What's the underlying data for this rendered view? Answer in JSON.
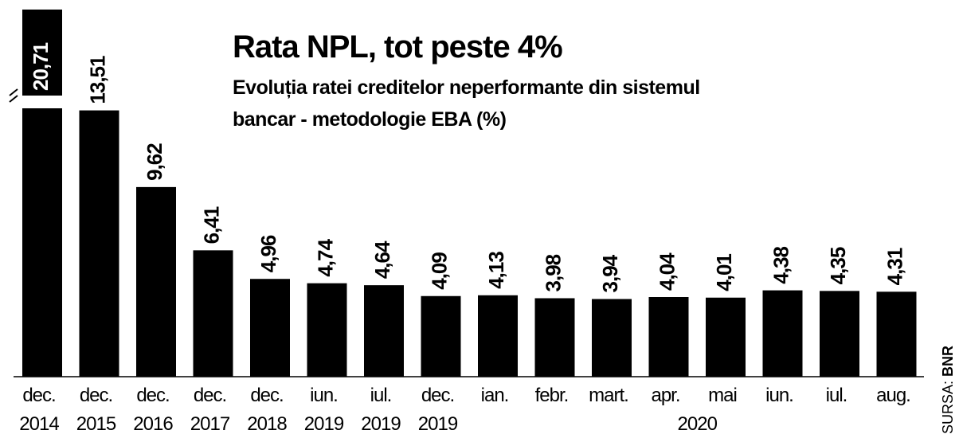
{
  "chart_data": {
    "type": "bar",
    "title": "Rata NPL, tot peste 4%",
    "subtitle": [
      "Evoluția ratei creditelor neperformante din sistemul",
      "bancar - metodologie EBA (%)"
    ],
    "categories": [
      "dec.",
      "dec.",
      "dec.",
      "dec.",
      "dec.",
      "iun.",
      "iul.",
      "dec.",
      "ian.",
      "febr.",
      "mart.",
      "apr.",
      "mai",
      "iun.",
      "iul.",
      "aug."
    ],
    "years": [
      "2014",
      "2015",
      "2016",
      "2017",
      "2018",
      "2019",
      "2019",
      "2019",
      null,
      null,
      null,
      null,
      null,
      null,
      null,
      null
    ],
    "group_label": "2020",
    "values": [
      20.71,
      13.51,
      9.62,
      6.41,
      4.96,
      4.74,
      4.64,
      4.09,
      4.13,
      3.98,
      3.94,
      4.04,
      4.01,
      4.38,
      4.35,
      4.31
    ],
    "value_labels": [
      "20,71",
      "13,51",
      "9,62",
      "6,41",
      "4,96",
      "4,74",
      "4,64",
      "4,09",
      "4,13",
      "3,98",
      "3,94",
      "4,04",
      "4,01",
      "4,38",
      "4,35",
      "4,31"
    ],
    "color": "#000000",
    "ylim": [
      0,
      14.1
    ],
    "source_prefix": "SURSA:",
    "source": "BNR"
  }
}
